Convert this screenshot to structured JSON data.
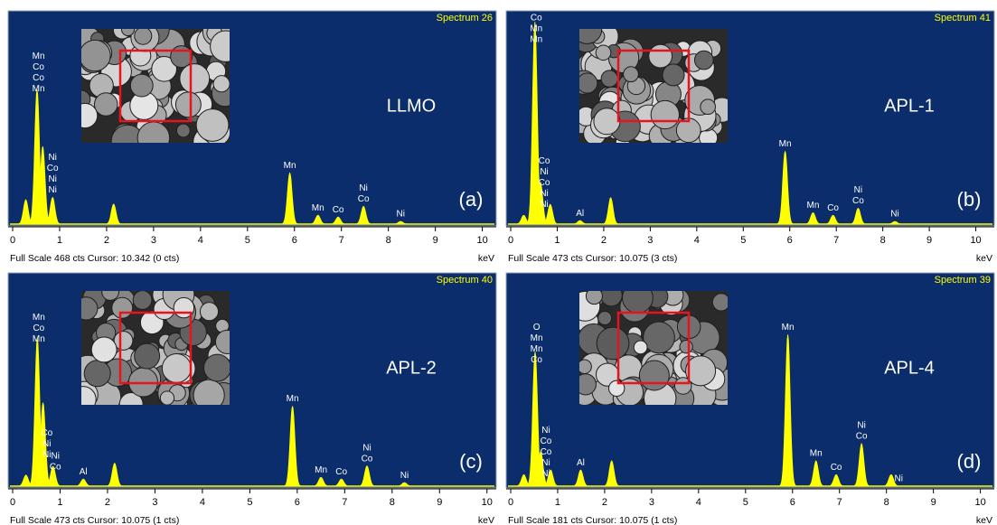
{
  "chart_data": [
    {
      "type": "spectrum",
      "title": "Spectrum 26",
      "sample": "LLMO",
      "panel": "(a)",
      "footer": "Full Scale 468 cts Cursor: 10.342  (0 cts)",
      "xlabel": "keV",
      "color": "#ffff00",
      "xlim": [
        0,
        10.2
      ],
      "xticks": [
        0,
        1,
        2,
        3,
        4,
        5,
        6,
        7,
        8,
        9,
        10
      ],
      "ylim": [
        0,
        468
      ],
      "peaks": {
        "x": [
          0.28,
          0.52,
          0.64,
          0.85,
          2.15,
          5.9,
          6.5,
          6.93,
          7.47,
          8.26
        ],
        "values": [
          55,
          303,
          175,
          60,
          45,
          115,
          20,
          16,
          40,
          6
        ]
      },
      "annotations": [
        {
          "x": 0.55,
          "labels": [
            "Mn",
            "Co",
            "Co",
            "Mn"
          ]
        },
        {
          "x": 0.85,
          "labels": [
            "Ni",
            "Co",
            "Ni",
            "Ni"
          ]
        },
        {
          "x": 5.9,
          "labels": [
            "Mn"
          ]
        },
        {
          "x": 6.5,
          "labels": [
            "Mn"
          ]
        },
        {
          "x": 6.93,
          "labels": [
            "Co"
          ]
        },
        {
          "x": 7.47,
          "labels": [
            "Ni",
            "Co"
          ]
        },
        {
          "x": 8.26,
          "labels": [
            "Ni"
          ]
        }
      ]
    },
    {
      "type": "spectrum",
      "title": "Spectrum 41",
      "sample": "APL-1",
      "panel": "(b)",
      "footer": "Full Scale 473 cts Cursor: 10.075  (3 cts)",
      "xlabel": "keV",
      "color": "#ffff00",
      "xlim": [
        0,
        10.3
      ],
      "xticks": [
        0,
        1,
        2,
        3,
        4,
        5,
        6,
        7,
        8,
        9,
        10
      ],
      "ylim": [
        0,
        473
      ],
      "peaks": {
        "x": [
          0.28,
          0.52,
          0.64,
          0.85,
          1.49,
          2.15,
          5.9,
          6.5,
          6.93,
          7.47,
          8.26
        ],
        "values": [
          20,
          460,
          95,
          45,
          8,
          60,
          166,
          26,
          20,
          36,
          6
        ]
      },
      "annotations": [
        {
          "x": 0.55,
          "labels": [
            "Co",
            "Mn",
            "Mn"
          ]
        },
        {
          "x": 0.72,
          "labels": [
            "Co",
            "Ni",
            "Co",
            "Ni",
            "Ni"
          ]
        },
        {
          "x": 1.49,
          "labels": [
            "Al"
          ]
        },
        {
          "x": 5.9,
          "labels": [
            "Mn"
          ]
        },
        {
          "x": 6.5,
          "labels": [
            "Mn"
          ]
        },
        {
          "x": 6.93,
          "labels": [
            "Co"
          ]
        },
        {
          "x": 7.47,
          "labels": [
            "Ni",
            "Co"
          ]
        },
        {
          "x": 8.26,
          "labels": [
            "Ni"
          ]
        }
      ]
    },
    {
      "type": "spectrum",
      "title": "Spectrum 40",
      "sample": "APL-2",
      "panel": "(c)",
      "footer": "Full Scale 473 cts Cursor: 10.075  (1 cts)",
      "xlabel": "keV",
      "color": "#ffff00",
      "xlim": [
        0,
        10.1
      ],
      "xticks": [
        0,
        1,
        2,
        3,
        4,
        5,
        6,
        7,
        8,
        9,
        10
      ],
      "ylim": [
        0,
        473
      ],
      "peaks": {
        "x": [
          0.28,
          0.52,
          0.64,
          0.85,
          1.49,
          2.15,
          5.9,
          6.5,
          6.93,
          7.47,
          8.26
        ],
        "values": [
          25,
          336,
          190,
          45,
          16,
          52,
          182,
          20,
          16,
          46,
          8
        ]
      },
      "annotations": [
        {
          "x": 0.55,
          "labels": [
            "Mn",
            "Co",
            "Mn"
          ]
        },
        {
          "x": 0.9,
          "labels": [
            "Ni",
            "Co"
          ]
        },
        {
          "x": 0.72,
          "labels": [
            "Co",
            "Ni",
            "Ni"
          ]
        },
        {
          "x": 1.49,
          "labels": [
            "Al"
          ]
        },
        {
          "x": 5.9,
          "labels": [
            "Mn"
          ]
        },
        {
          "x": 6.5,
          "labels": [
            "Mn"
          ]
        },
        {
          "x": 6.93,
          "labels": [
            "Co"
          ]
        },
        {
          "x": 7.47,
          "labels": [
            "Ni",
            "Co"
          ]
        },
        {
          "x": 8.26,
          "labels": [
            "Ni"
          ]
        }
      ]
    },
    {
      "type": "spectrum",
      "title": "Spectrum 39",
      "sample": "APL-4",
      "panel": "(d)",
      "footer": "Full Scale 181 cts Cursor: 10.075  (1 cts)",
      "xlabel": "keV",
      "color": "#ffff00",
      "xlim": [
        0,
        10.2
      ],
      "xticks": [
        0,
        1,
        2,
        3,
        4,
        5,
        6,
        7,
        8,
        9,
        10
      ],
      "ylim": [
        0,
        181
      ],
      "peaks": {
        "x": [
          0.28,
          0.52,
          0.64,
          0.85,
          1.49,
          2.15,
          5.9,
          6.5,
          6.93,
          7.47,
          8.1
        ],
        "values": [
          10,
          117,
          30,
          14,
          14,
          22,
          132,
          22,
          10,
          37,
          10
        ]
      },
      "annotations": [
        {
          "x": 0.55,
          "labels": [
            "O",
            "Mn",
            "Mn",
            "Co"
          ]
        },
        {
          "x": 0.75,
          "labels": [
            "Ni",
            "Co",
            "Co",
            "Ni",
            "Ni"
          ]
        },
        {
          "x": 1.49,
          "labels": [
            "Al"
          ]
        },
        {
          "x": 5.9,
          "labels": [
            "Mn"
          ]
        },
        {
          "x": 6.5,
          "labels": [
            "Mn"
          ]
        },
        {
          "x": 6.93,
          "labels": [
            "Co"
          ]
        },
        {
          "x": 7.47,
          "labels": [
            "Ni",
            "Co"
          ]
        },
        {
          "x": 8.26,
          "labels": [
            "Ni"
          ]
        }
      ]
    }
  ]
}
